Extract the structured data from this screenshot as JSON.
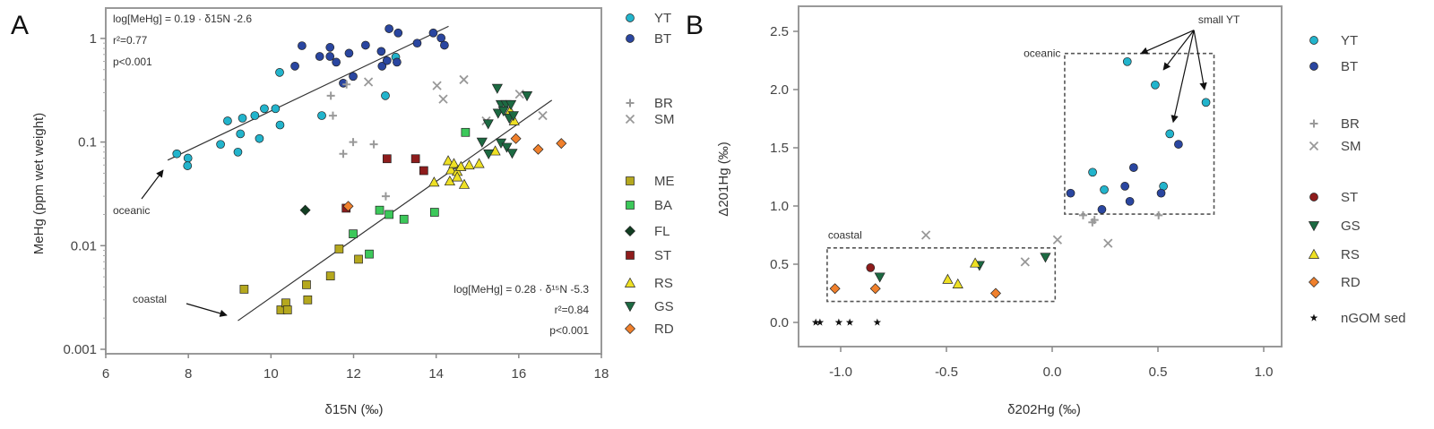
{
  "chart_data": [
    {
      "id": "A",
      "type": "scatter",
      "panel_label": "A",
      "xlabel": "δ15N (‰)",
      "ylabel": "MeHg (ppm wet weight)",
      "xscale": "linear",
      "yscale": "log",
      "xlim": [
        6,
        18
      ],
      "ylim": [
        0.0009,
        1.95
      ],
      "xticks": [
        "6",
        "8",
        "10",
        "12",
        "14",
        "16",
        "18"
      ],
      "xtick_values": [
        6,
        8,
        10,
        12,
        14,
        16,
        18
      ],
      "yticks": [
        "1",
        "0.1",
        "0.01",
        "0.001"
      ],
      "ytick_values": [
        1,
        0.1,
        0.01,
        0.001
      ],
      "legend_placement": "right",
      "series": [
        {
          "name": "YT",
          "marker": "circle",
          "color": "#22b4cc",
          "points": [
            [
              7.72,
              0.077
            ],
            [
              7.99,
              0.07
            ],
            [
              7.98,
              0.059
            ],
            [
              8.78,
              0.095
            ],
            [
              8.95,
              0.16
            ],
            [
              9.2,
              0.08
            ],
            [
              9.26,
              0.12
            ],
            [
              9.31,
              0.17
            ],
            [
              9.61,
              0.18
            ],
            [
              9.72,
              0.108
            ],
            [
              9.84,
              0.21
            ],
            [
              10.11,
              0.21
            ],
            [
              10.22,
              0.146
            ],
            [
              10.21,
              0.47
            ],
            [
              11.23,
              0.18
            ],
            [
              12.77,
              0.28
            ],
            [
              13.02,
              0.66
            ]
          ]
        },
        {
          "name": "BT",
          "marker": "circle",
          "color": "#2a46a0",
          "points": [
            [
              10.58,
              0.54
            ],
            [
              10.75,
              0.85
            ],
            [
              11.18,
              0.67
            ],
            [
              11.43,
              0.82
            ],
            [
              11.43,
              0.67
            ],
            [
              11.58,
              0.59
            ],
            [
              11.89,
              0.72
            ],
            [
              12.29,
              0.86
            ],
            [
              12.67,
              0.75
            ],
            [
              12.69,
              0.54
            ],
            [
              12.81,
              0.61
            ],
            [
              12.86,
              1.24
            ],
            [
              13.08,
              1.13
            ],
            [
              13.54,
              0.9
            ],
            [
              13.93,
              1.13
            ],
            [
              14.12,
              1.01
            ],
            [
              14.2,
              0.86
            ],
            [
              11.75,
              0.37
            ],
            [
              11.99,
              0.43
            ],
            [
              13.05,
              0.59
            ]
          ]
        },
        {
          "name": "BR",
          "marker": "plus",
          "color": "#999999",
          "points": [
            [
              11.45,
              0.28
            ],
            [
              11.5,
              0.18
            ],
            [
              11.75,
              0.077
            ],
            [
              11.99,
              0.1
            ],
            [
              12.49,
              0.095
            ],
            [
              12.78,
              0.03
            ],
            [
              11.83,
              0.36
            ]
          ]
        },
        {
          "name": "SM",
          "marker": "cross",
          "color": "#999999",
          "points": [
            [
              12.36,
              0.38
            ],
            [
              14.02,
              0.35
            ],
            [
              14.17,
              0.26
            ],
            [
              14.67,
              0.4
            ],
            [
              15.21,
              0.16
            ],
            [
              16.02,
              0.29
            ],
            [
              16.58,
              0.18
            ]
          ]
        },
        {
          "name": "ME",
          "marker": "square",
          "color": "#b5a81e",
          "points": [
            [
              9.35,
              0.0038
            ],
            [
              10.24,
              0.0024
            ],
            [
              10.36,
              0.0028
            ],
            [
              10.4,
              0.0024
            ],
            [
              10.86,
              0.0042
            ],
            [
              10.89,
              0.003
            ],
            [
              11.44,
              0.0051
            ],
            [
              11.65,
              0.0093
            ],
            [
              12.12,
              0.0074
            ]
          ]
        },
        {
          "name": "BA",
          "marker": "square",
          "color": "#3cc85a",
          "points": [
            [
              11.99,
              0.013
            ],
            [
              12.38,
              0.0083
            ],
            [
              12.63,
              0.022
            ],
            [
              12.86,
              0.02
            ],
            [
              13.22,
              0.018
            ],
            [
              13.96,
              0.021
            ],
            [
              14.71,
              0.124
            ]
          ]
        },
        {
          "name": "FL",
          "marker": "diamond",
          "color": "#123e22",
          "points": [
            [
              10.83,
              0.022
            ]
          ]
        },
        {
          "name": "ST",
          "marker": "square",
          "color": "#8e1c1c",
          "points": [
            [
              11.82,
              0.023
            ],
            [
              12.81,
              0.069
            ],
            [
              13.5,
              0.069
            ],
            [
              13.7,
              0.053
            ]
          ]
        },
        {
          "name": "RS",
          "marker": "triangle-up",
          "color": "#eee024",
          "points": [
            [
              13.95,
              0.041
            ],
            [
              14.29,
              0.066
            ],
            [
              14.36,
              0.054
            ],
            [
              14.43,
              0.062
            ],
            [
              14.51,
              0.052
            ],
            [
              14.6,
              0.058
            ],
            [
              14.33,
              0.042
            ],
            [
              14.68,
              0.039
            ],
            [
              14.8,
              0.06
            ],
            [
              15.04,
              0.062
            ],
            [
              15.43,
              0.082
            ],
            [
              15.79,
              0.2
            ],
            [
              15.89,
              0.16
            ],
            [
              14.51,
              0.046
            ]
          ]
        },
        {
          "name": "GS",
          "marker": "triangle-down",
          "color": "#1c6a42",
          "points": [
            [
              15.48,
              0.33
            ],
            [
              16.2,
              0.28
            ],
            [
              15.57,
              0.23
            ],
            [
              15.69,
              0.23
            ],
            [
              15.81,
              0.23
            ],
            [
              15.5,
              0.19
            ],
            [
              15.77,
              0.17
            ],
            [
              15.26,
              0.15
            ],
            [
              15.11,
              0.1
            ],
            [
              15.27,
              0.077
            ],
            [
              15.57,
              0.098
            ],
            [
              15.71,
              0.089
            ],
            [
              15.84,
              0.078
            ],
            [
              15.63,
              0.2
            ],
            [
              15.87,
              0.18
            ]
          ]
        },
        {
          "name": "RD",
          "marker": "diamond",
          "color": "#f0802c",
          "points": [
            [
              11.87,
              0.024
            ],
            [
              15.93,
              0.108
            ],
            [
              16.47,
              0.085
            ],
            [
              17.03,
              0.097
            ]
          ]
        }
      ],
      "fits": [
        {
          "name": "oceanic-fit",
          "slope": 0.19,
          "intercept": -2.6,
          "x_range": [
            7.5,
            14.3
          ]
        },
        {
          "name": "coastal-fit",
          "slope": 0.28,
          "intercept": -5.3,
          "x_range": [
            9.2,
            16.8
          ]
        }
      ],
      "annotations": {
        "eq_oceanic": "log[MeHg] = 0.19 · δ15N -2.6",
        "r2_oceanic": "r²=0.77",
        "p_oceanic": "p<0.001",
        "eq_coastal": "log[MeHg] = 0.28 · δ¹⁵N -5.3",
        "r2_coastal": "r²=0.84",
        "p_coastal": "p<0.001",
        "oceanic_label": "oceanic",
        "coastal_label": "coastal"
      }
    },
    {
      "id": "B",
      "type": "scatter",
      "panel_label": "B",
      "xlabel": "δ202Hg (‰)",
      "ylabel": "Δ201Hg (‰)",
      "xlim": [
        -1.2,
        1.1
      ],
      "ylim": [
        -0.2,
        2.7
      ],
      "xticks": [
        "-1.0",
        "-0.5",
        "0.0",
        "0.5",
        "1.0"
      ],
      "xtick_values": [
        -1,
        -0.5,
        0,
        0.5,
        1
      ],
      "yticks": [
        "0.0",
        "0.5",
        "1.0",
        "1.5",
        "2.0",
        "2.5"
      ],
      "ytick_values": [
        0,
        0.5,
        1,
        1.5,
        2,
        2.5
      ],
      "legend_placement": "right",
      "series": [
        {
          "name": "YT",
          "marker": "circle",
          "color": "#22b4cc",
          "points": [
            [
              0.355,
              2.24
            ],
            [
              0.487,
              2.04
            ],
            [
              0.727,
              1.89
            ],
            [
              0.556,
              1.62
            ],
            [
              0.191,
              1.29
            ],
            [
              0.246,
              1.14
            ],
            [
              0.526,
              1.17
            ]
          ]
        },
        {
          "name": "BT",
          "marker": "circle",
          "color": "#2a46a0",
          "points": [
            [
              0.597,
              1.53
            ],
            [
              0.385,
              1.33
            ],
            [
              0.344,
              1.17
            ],
            [
              0.367,
              1.04
            ],
            [
              0.235,
              0.97
            ],
            [
              0.087,
              1.11
            ],
            [
              0.515,
              1.11
            ]
          ]
        },
        {
          "name": "BR",
          "marker": "plus",
          "color": "#999999",
          "points": [
            [
              0.146,
              0.92
            ],
            [
              0.2,
              0.88
            ],
            [
              0.503,
              0.92
            ],
            [
              0.19,
              0.86
            ]
          ]
        },
        {
          "name": "SM",
          "marker": "cross",
          "color": "#999999",
          "points": [
            [
              -0.597,
              0.75
            ],
            [
              0.025,
              0.71
            ],
            [
              0.264,
              0.68
            ],
            [
              -0.128,
              0.52
            ]
          ]
        },
        {
          "name": "ST",
          "marker": "circle",
          "color": "#8e1c1c",
          "points": [
            [
              -0.859,
              0.47
            ]
          ]
        },
        {
          "name": "GS",
          "marker": "triangle-down",
          "color": "#1c6a42",
          "points": [
            [
              -0.815,
              0.39
            ],
            [
              -0.344,
              0.49
            ],
            [
              -0.032,
              0.56
            ]
          ]
        },
        {
          "name": "RS",
          "marker": "triangle-up",
          "color": "#eee024",
          "points": [
            [
              -0.494,
              0.37
            ],
            [
              -0.446,
              0.33
            ],
            [
              -0.364,
              0.51
            ]
          ]
        },
        {
          "name": "RD",
          "marker": "diamond",
          "color": "#f0802c",
          "points": [
            [
              -1.027,
              0.29
            ],
            [
              -0.836,
              0.29
            ],
            [
              -0.267,
              0.25
            ]
          ]
        },
        {
          "name": "nGOM sed",
          "marker": "star",
          "color": "#111111",
          "points": [
            [
              -1.118,
              0
            ],
            [
              -1.098,
              0
            ],
            [
              -1.009,
              0
            ],
            [
              -0.957,
              0
            ],
            [
              -0.827,
              0
            ]
          ]
        }
      ],
      "regions": [
        {
          "name": "oceanic",
          "x": [
            0.059,
            0.765
          ],
          "y": [
            0.93,
            2.31
          ]
        },
        {
          "name": "coastal",
          "x": [
            -1.064,
            0.014
          ],
          "y": [
            0.18,
            0.64
          ]
        }
      ],
      "annotations": {
        "oceanic_label": "oceanic",
        "coastal_label": "coastal",
        "small_yt_label": "small YT",
        "small_yt_targets": [
          [
            0.42,
            2.31
          ],
          [
            0.526,
            2.17
          ],
          [
            0.572,
            1.72
          ],
          [
            0.72,
            2.0
          ]
        ]
      }
    }
  ]
}
